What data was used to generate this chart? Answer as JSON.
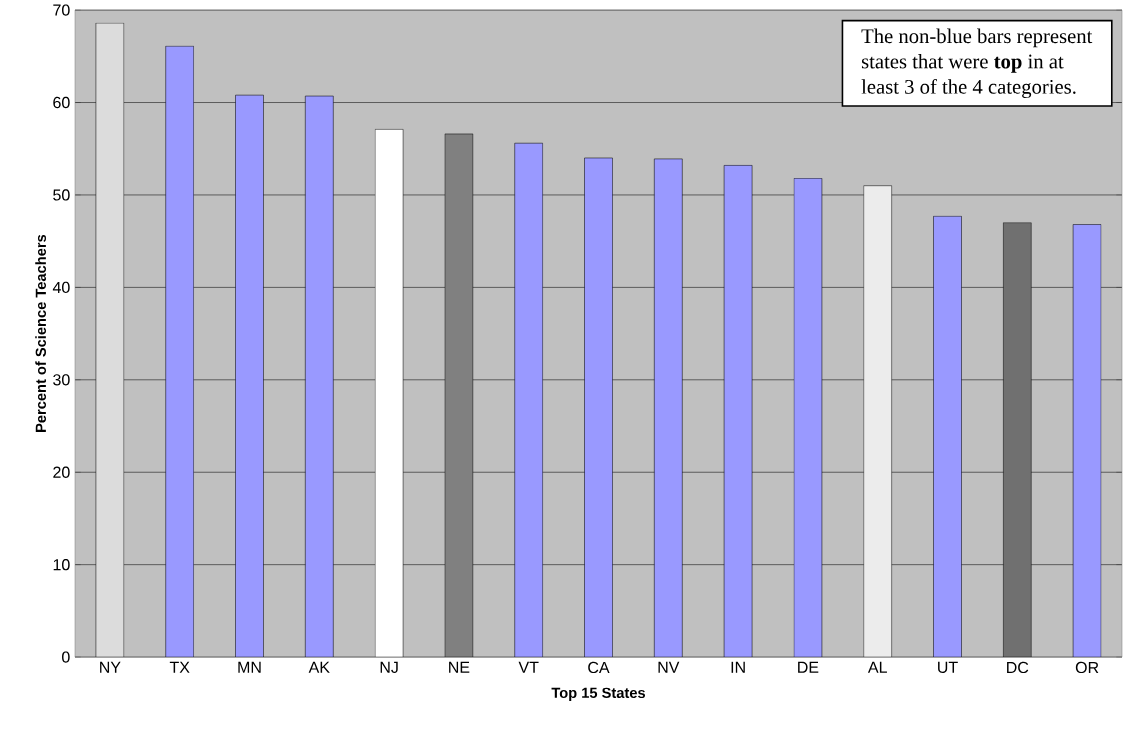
{
  "chart_data": {
    "type": "bar",
    "xlabel": "Top 15 States",
    "ylabel": "Percent of Science Teachers",
    "categories": [
      "NY",
      "TX",
      "MN",
      "AK",
      "NJ",
      "NE",
      "VT",
      "CA",
      "NV",
      "IN",
      "DE",
      "AL",
      "UT",
      "DC",
      "OR"
    ],
    "values": [
      68.6,
      66.1,
      60.8,
      60.7,
      57.1,
      56.6,
      55.6,
      54.0,
      53.9,
      53.2,
      51.8,
      51.0,
      47.7,
      47.0,
      46.8
    ],
    "colors": [
      "#dcdcdc",
      "#9999ff",
      "#9999ff",
      "#9999ff",
      "#ffffff",
      "#808080",
      "#9999ff",
      "#9999ff",
      "#9999ff",
      "#9999ff",
      "#9999ff",
      "#ececec",
      "#9999ff",
      "#707070",
      "#9999ff"
    ],
    "ylim": [
      0,
      70
    ],
    "yticks": [
      0,
      10,
      20,
      30,
      40,
      50,
      60,
      70
    ],
    "grid": "y",
    "annotations": [
      "The non-blue bars represent states that were **top** in at least 3 of the 4 categories."
    ]
  }
}
